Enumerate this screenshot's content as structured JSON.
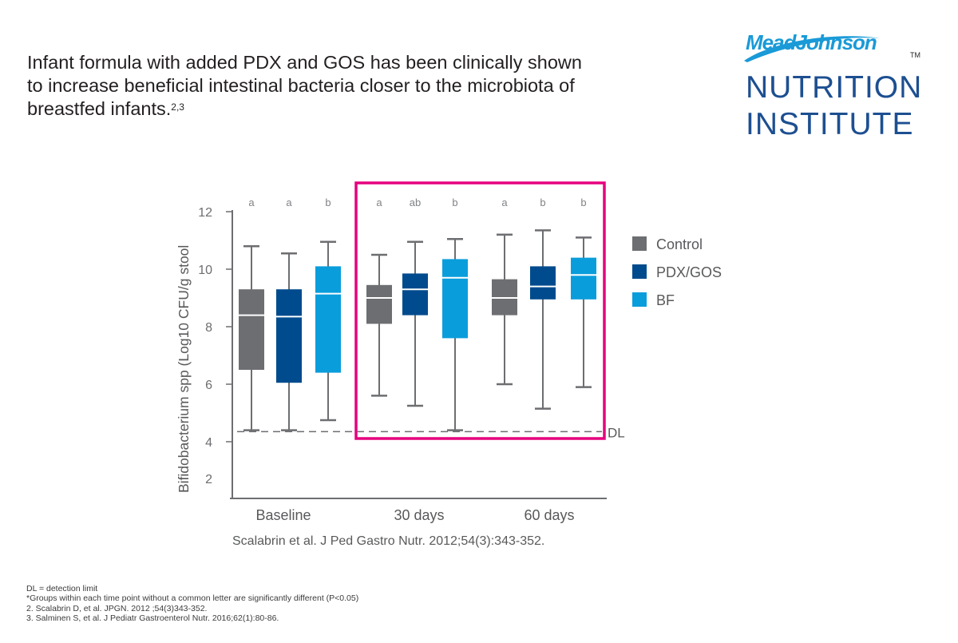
{
  "headline": {
    "text": "Infant formula with added PDX and GOS has been clinically shown to increase beneficial intestinal bacteria closer to the microbiota of breastfed infants.",
    "superscript": "2,3"
  },
  "logo": {
    "brand": "MeadJohnson",
    "trademark": "TM",
    "line1": "NUTRITION",
    "line2": "INSTITUTE"
  },
  "citation": "Scalabrin et al. J Ped Gastro Nutr. 2012;54(3):343-352.",
  "footnotes": [
    "DL = detection limit",
    "*Groups within each time point without a common letter are significantly different (P<0.05)",
    "2.  Scalabrin D, et al. JPGN. 2012 ;54(3)343-352.",
    "3.  Salminen S, et al. J Pediatr Gastroenterol Nutr. 2016;62(1):80-86."
  ],
  "colors": {
    "Control": "#6d6e71",
    "PDX/GOS": "#004b8d",
    "BF": "#0a9ddb",
    "highlight": "#e6007e",
    "axis": "#6d6e71"
  },
  "chart_data": {
    "type": "boxplot",
    "title": "",
    "ylabel": "Bifidobacterium spp (Log10 CFU/g stool",
    "xlabel": "",
    "ylim": [
      2,
      12.2
    ],
    "yticks": [
      2,
      4,
      6,
      8,
      10,
      12
    ],
    "categories": [
      "Baseline",
      "30 days",
      "60 days"
    ],
    "series_names": [
      "Control",
      "PDX/GOS",
      "BF"
    ],
    "legend": {
      "position": "right",
      "entries": [
        "Control",
        "PDX/GOS",
        "BF"
      ]
    },
    "detection_limit": {
      "value": 4.35,
      "label": "DL"
    },
    "highlight_region": {
      "categories": [
        "30 days",
        "60 days"
      ]
    },
    "groups": [
      {
        "category": "Baseline",
        "boxes": [
          {
            "series": "Control",
            "letter": "a",
            "min": 4.4,
            "q1": 6.5,
            "median": 8.4,
            "q3": 9.3,
            "max": 10.8
          },
          {
            "series": "PDX/GOS",
            "letter": "a",
            "min": 4.4,
            "q1": 6.05,
            "median": 8.35,
            "q3": 9.3,
            "max": 10.55
          },
          {
            "series": "BF",
            "letter": "b",
            "min": 4.75,
            "q1": 6.4,
            "median": 9.15,
            "q3": 10.1,
            "max": 10.95
          }
        ]
      },
      {
        "category": "30 days",
        "boxes": [
          {
            "series": "Control",
            "letter": "a",
            "min": 5.6,
            "q1": 8.1,
            "median": 9.0,
            "q3": 9.45,
            "max": 10.5
          },
          {
            "series": "PDX/GOS",
            "letter": "ab",
            "min": 5.25,
            "q1": 8.4,
            "median": 9.3,
            "q3": 9.85,
            "max": 10.95
          },
          {
            "series": "BF",
            "letter": "b",
            "min": 4.4,
            "q1": 7.6,
            "median": 9.7,
            "q3": 10.35,
            "max": 11.05
          }
        ]
      },
      {
        "category": "60 days",
        "boxes": [
          {
            "series": "Control",
            "letter": "a",
            "min": 6.0,
            "q1": 8.4,
            "median": 9.0,
            "q3": 9.65,
            "max": 11.2
          },
          {
            "series": "PDX/GOS",
            "letter": "b",
            "min": 5.15,
            "q1": 8.95,
            "median": 9.4,
            "q3": 10.1,
            "max": 11.35
          },
          {
            "series": "BF",
            "letter": "b",
            "min": 5.9,
            "q1": 8.95,
            "median": 9.8,
            "q3": 10.4,
            "max": 11.1
          }
        ]
      }
    ]
  }
}
